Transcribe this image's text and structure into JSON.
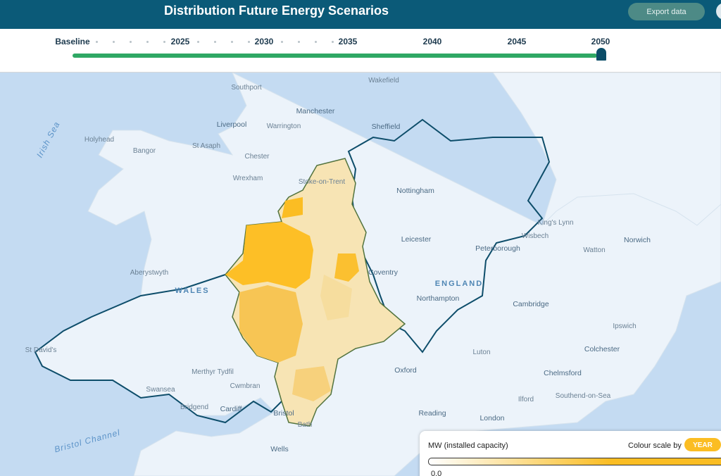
{
  "header": {
    "title": "Distribution Future Energy Scenarios",
    "export_button": "Export data"
  },
  "timeline": {
    "labels": [
      "Baseline",
      "2025",
      "2030",
      "2035",
      "2040",
      "2045",
      "2050"
    ]
  },
  "map": {
    "places": [
      "Southport",
      "Wakefield",
      "Manchester",
      "Liverpool",
      "Warrington",
      "Sheffield",
      "Holyhead",
      "St Asaph",
      "Bangor",
      "Chester",
      "Wrexham",
      "Stoke-on-Trent",
      "Nottingham",
      "King's Lynn",
      "Wisbech",
      "Leicester",
      "Norwich",
      "Peterborough",
      "Watton",
      "Coventry",
      "Aberystwyth",
      "Northampton",
      "Cambridge",
      "Ipswich",
      "St David's",
      "Colchester",
      "Luton",
      "Merthyr Tydfil",
      "Oxford",
      "Chelmsford",
      "Cwmbran",
      "Swansea",
      "Southend-on-Sea",
      "Ilford",
      "Bridgend",
      "Cardiff",
      "Bristol",
      "Reading",
      "London",
      "Bath",
      "Wells"
    ],
    "regions": [
      "WALES",
      "ENGLAND"
    ],
    "seas": [
      "Irish Sea",
      "Bristol Channel"
    ]
  },
  "legend": {
    "title": "MW (installed capacity)",
    "scale_by": "Colour scale by",
    "scale_button": "YEAR",
    "min": "0.0"
  }
}
